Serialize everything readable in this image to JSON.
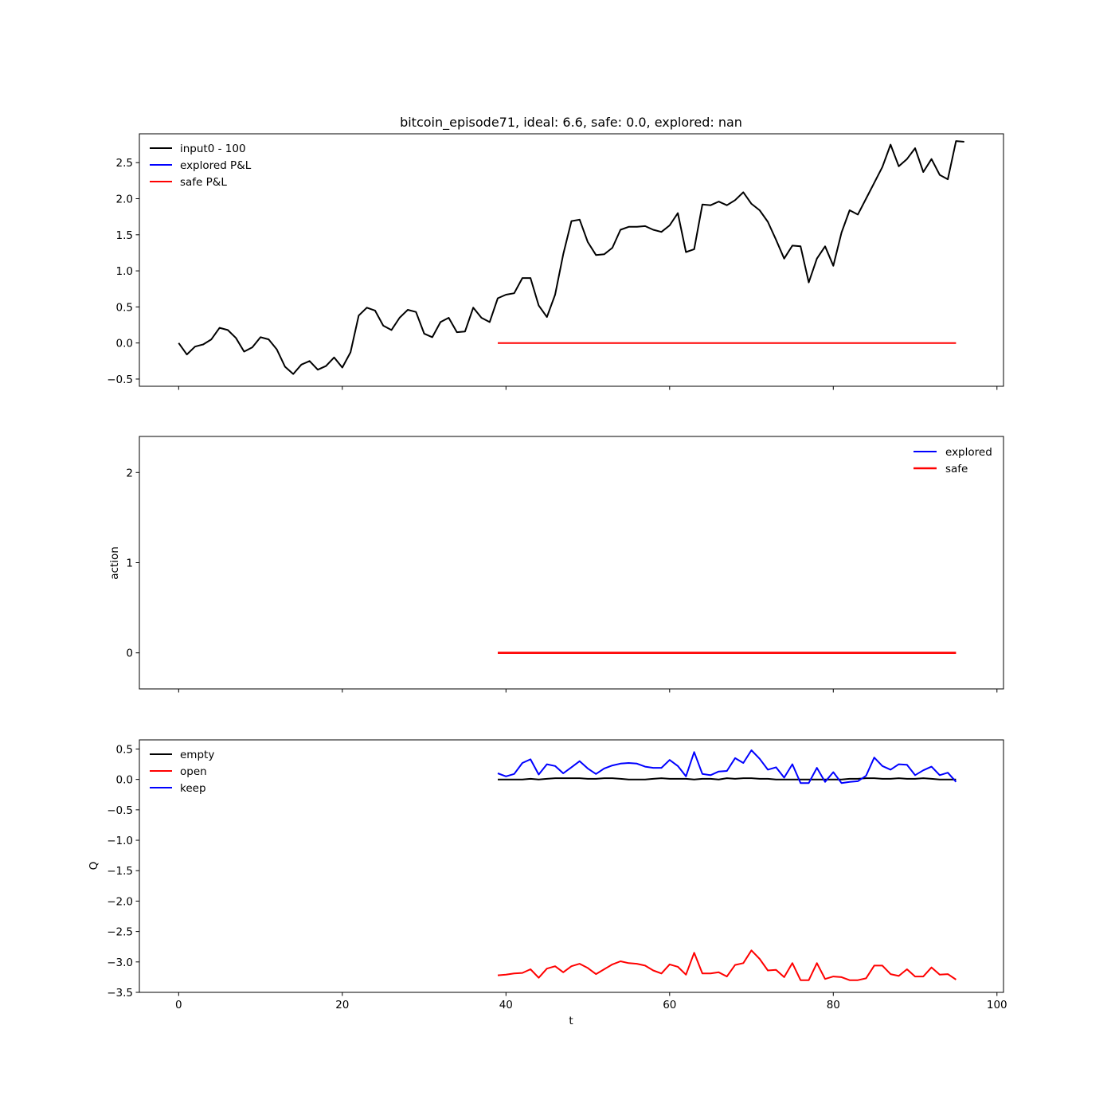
{
  "chart_data": [
    {
      "type": "line",
      "title": "bitcoin_episode71, ideal: 6.6, safe: 0.0, explored: nan",
      "xlabel": "",
      "ylabel": "",
      "xlim": [
        -4.8,
        100.8
      ],
      "ylim": [
        -0.6,
        2.9
      ],
      "x_ticks": [
        0,
        20,
        40,
        60,
        80,
        100
      ],
      "x_tick_labels_visible": false,
      "y_ticks": [
        -0.5,
        0.0,
        0.5,
        1.0,
        1.5,
        2.0,
        2.5
      ],
      "y_tick_labels": [
        "−0.5",
        "0.0",
        "0.5",
        "1.0",
        "1.5",
        "2.0",
        "2.5"
      ],
      "legend": {
        "placement": "upper-left",
        "entries": [
          "input0 - 100",
          "explored P&L",
          "safe P&L"
        ]
      },
      "series": [
        {
          "name": "input0 - 100",
          "color": "#000000",
          "x_start": 0,
          "values": [
            0.0,
            -0.16,
            -0.05,
            -0.02,
            0.05,
            0.21,
            0.18,
            0.07,
            -0.12,
            -0.06,
            0.08,
            0.05,
            -0.09,
            -0.33,
            -0.43,
            -0.3,
            -0.25,
            -0.37,
            -0.32,
            -0.2,
            -0.34,
            -0.13,
            0.38,
            0.49,
            0.45,
            0.24,
            0.18,
            0.35,
            0.46,
            0.43,
            0.13,
            0.08,
            0.29,
            0.35,
            0.15,
            0.16,
            0.49,
            0.35,
            0.29,
            0.62,
            0.67,
            0.69,
            0.9,
            0.9,
            0.52,
            0.36,
            0.67,
            1.23,
            1.69,
            1.71,
            1.4,
            1.22,
            1.23,
            1.32,
            1.57,
            1.61,
            1.61,
            1.62,
            1.57,
            1.54,
            1.63,
            1.8,
            1.26,
            1.3,
            1.92,
            1.91,
            1.96,
            1.91,
            1.98,
            2.09,
            1.93,
            1.84,
            1.68,
            1.43,
            1.17,
            1.35,
            1.34,
            0.84,
            1.17,
            1.34,
            1.07,
            1.53,
            1.84,
            1.78,
            2.0,
            2.22,
            2.44,
            2.75,
            2.45,
            2.55,
            2.7,
            2.37,
            2.55,
            2.33,
            2.27,
            2.8,
            2.79
          ]
        },
        {
          "name": "explored P&L",
          "color": "#0000ff",
          "x_start": 39,
          "values": []
        },
        {
          "name": "safe P&L",
          "color": "#ff0000",
          "x_start": 39,
          "values": [
            0.0,
            0.0,
            0.0,
            0.0,
            0.0,
            0.0,
            0.0,
            0.0,
            0.0,
            0.0,
            0.0,
            0.0,
            0.0,
            0.0,
            0.0,
            0.0,
            0.0,
            0.0,
            0.0,
            0.0,
            0.0,
            0.0,
            0.0,
            0.0,
            0.0,
            0.0,
            0.0,
            0.0,
            0.0,
            0.0,
            0.0,
            0.0,
            0.0,
            0.0,
            0.0,
            0.0,
            0.0,
            0.0,
            0.0,
            0.0,
            0.0,
            0.0,
            0.0,
            0.0,
            0.0,
            0.0,
            0.0,
            0.0,
            0.0,
            0.0,
            0.0,
            0.0,
            0.0,
            0.0,
            0.0,
            0.0,
            0.0
          ]
        }
      ]
    },
    {
      "type": "line",
      "title": "",
      "xlabel": "",
      "ylabel": "action",
      "xlim": [
        -4.8,
        100.8
      ],
      "ylim": [
        -0.4,
        2.4
      ],
      "x_ticks": [
        0,
        20,
        40,
        60,
        80,
        100
      ],
      "x_tick_labels_visible": false,
      "y_ticks": [
        0,
        1,
        2
      ],
      "y_tick_labels": [
        "0",
        "1",
        "2"
      ],
      "legend": {
        "placement": "upper-right",
        "entries": [
          "explored",
          "safe"
        ]
      },
      "series": [
        {
          "name": "explored",
          "color": "#0000ff",
          "x_start": 39,
          "values": []
        },
        {
          "name": "safe",
          "color": "#ff0000",
          "x_start": 39,
          "values": [
            0,
            0,
            0,
            0,
            0,
            0,
            0,
            0,
            0,
            0,
            0,
            0,
            0,
            0,
            0,
            0,
            0,
            0,
            0,
            0,
            0,
            0,
            0,
            0,
            0,
            0,
            0,
            0,
            0,
            0,
            0,
            0,
            0,
            0,
            0,
            0,
            0,
            0,
            0,
            0,
            0,
            0,
            0,
            0,
            0,
            0,
            0,
            0,
            0,
            0,
            0,
            0,
            0,
            0,
            0,
            0,
            0
          ]
        }
      ]
    },
    {
      "type": "line",
      "title": "",
      "xlabel": "t",
      "ylabel": "Q",
      "xlim": [
        -4.8,
        100.8
      ],
      "ylim": [
        -3.5,
        0.65
      ],
      "x_ticks": [
        0,
        20,
        40,
        60,
        80,
        100
      ],
      "x_tick_labels": [
        "0",
        "20",
        "40",
        "60",
        "80",
        "100"
      ],
      "x_tick_labels_visible": true,
      "y_ticks": [
        -3.5,
        -3.0,
        -2.5,
        -2.0,
        -1.5,
        -1.0,
        -0.5,
        0.0,
        0.5
      ],
      "y_tick_labels": [
        "−3.5",
        "−3.0",
        "−2.5",
        "−2.0",
        "−1.5",
        "−1.0",
        "−0.5",
        "0.0",
        "0.5"
      ],
      "legend": {
        "placement": "upper-left",
        "entries": [
          "empty",
          "open",
          "keep"
        ]
      },
      "series": [
        {
          "name": "empty",
          "color": "#000000",
          "x_start": 39,
          "values": [
            0.0,
            0.0,
            0.0,
            0.0,
            0.01,
            0.0,
            0.01,
            0.02,
            0.02,
            0.02,
            0.02,
            0.01,
            0.01,
            0.02,
            0.02,
            0.01,
            0.0,
            0.0,
            0.0,
            0.01,
            0.02,
            0.01,
            0.01,
            0.01,
            0.0,
            0.01,
            0.01,
            0.0,
            0.02,
            0.01,
            0.02,
            0.02,
            0.01,
            0.01,
            0.0,
            0.0,
            0.0,
            0.0,
            0.0,
            0.0,
            0.0,
            0.0,
            0.0,
            0.01,
            0.01,
            0.02,
            0.02,
            0.01,
            0.01,
            0.02,
            0.01,
            0.01,
            0.02,
            0.01,
            0.0,
            0.0,
            0.0
          ]
        },
        {
          "name": "open",
          "color": "#ff0000",
          "x_start": 39,
          "values": [
            -3.22,
            -3.21,
            -3.19,
            -3.18,
            -3.12,
            -3.26,
            -3.11,
            -3.07,
            -3.17,
            -3.07,
            -3.03,
            -3.1,
            -3.2,
            -3.12,
            -3.04,
            -2.99,
            -3.02,
            -3.03,
            -3.06,
            -3.14,
            -3.19,
            -3.04,
            -3.08,
            -3.21,
            -2.85,
            -3.19,
            -3.19,
            -3.17,
            -3.24,
            -3.05,
            -3.02,
            -2.81,
            -2.95,
            -3.14,
            -3.13,
            -3.25,
            -3.02,
            -3.3,
            -3.3,
            -3.02,
            -3.28,
            -3.24,
            -3.25,
            -3.3,
            -3.3,
            -3.27,
            -3.06,
            -3.06,
            -3.2,
            -3.23,
            -3.12,
            -3.24,
            -3.24,
            -3.09,
            -3.21,
            -3.2,
            -3.29
          ]
        },
        {
          "name": "keep",
          "color": "#0000ff",
          "x_start": 39,
          "values": [
            0.1,
            0.05,
            0.09,
            0.27,
            0.33,
            0.08,
            0.25,
            0.22,
            0.1,
            0.2,
            0.3,
            0.18,
            0.09,
            0.18,
            0.23,
            0.26,
            0.27,
            0.26,
            0.21,
            0.19,
            0.19,
            0.32,
            0.22,
            0.05,
            0.45,
            0.09,
            0.07,
            0.13,
            0.14,
            0.35,
            0.27,
            0.48,
            0.34,
            0.16,
            0.2,
            0.03,
            0.25,
            -0.06,
            -0.06,
            0.19,
            -0.04,
            0.12,
            -0.06,
            -0.04,
            -0.03,
            0.06,
            0.36,
            0.22,
            0.16,
            0.25,
            0.24,
            0.07,
            0.15,
            0.21,
            0.07,
            0.11,
            -0.04
          ]
        }
      ]
    }
  ]
}
